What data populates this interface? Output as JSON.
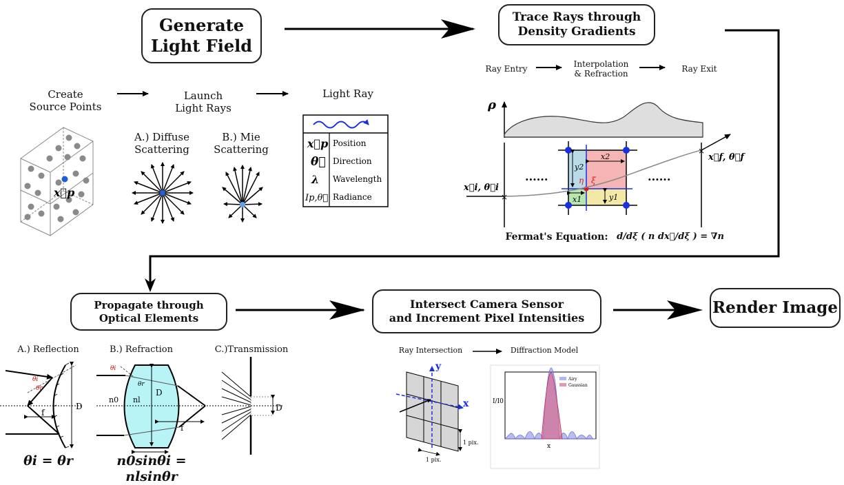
{
  "steps": {
    "generate": "Generate\nLight Field",
    "trace": "Trace Rays through\nDensity Gradients",
    "propagate": "Propagate through\nOptical Elements",
    "intersect": "Intersect Camera Sensor\nand Increment Pixel Intensities",
    "render": "Render Image"
  },
  "generate": {
    "create_source": "Create\nSource Points",
    "launch": "Launch\nLight Rays",
    "light_ray": "Light Ray",
    "diffuse": "A.) Diffuse\nScattering",
    "mie": "B.) Mie\nScattering",
    "xp_label": "x⃗p",
    "table": {
      "symbols": [
        "x⃗p",
        "θ⃗",
        "λ",
        "Ip,θ⃗"
      ],
      "labels": [
        "Position",
        "Direction",
        "Wavelength",
        "Radiance"
      ]
    }
  },
  "trace": {
    "ray_entry": "Ray Entry",
    "interp": "Interpolation\n& Refraction",
    "ray_exit": "Ray Exit",
    "rho": "ρ",
    "dots": "......",
    "entry_label": "x⃗i, θ⃗i",
    "exit_label": "x⃗f, θ⃗f",
    "x1": "x1",
    "x2": "x2",
    "y1": "y1",
    "y2": "y2",
    "eta": "η",
    "xi": "ξ",
    "fermat_label": "Fermat's Equation:",
    "fermat_eq": "d/dξ ( n dx⃗/dξ ) = ∇n"
  },
  "optics": {
    "reflection": "A.) Reflection",
    "refraction": "B.) Refraction",
    "transmission": "C.)Transmission",
    "theta_i": "θi",
    "theta_r": "θr",
    "n0": "n0",
    "nl": "nl",
    "D": "D",
    "f": "f",
    "t": "t",
    "eq_reflection": "θi = θr",
    "eq_refraction": "n0sinθi = nlsinθr"
  },
  "sensor": {
    "ray_intersection": "Ray Intersection",
    "diffraction": "Diffraction Model",
    "y": "y",
    "x": "x",
    "pix_h": "1 pix.",
    "pix_v": "1 pix.",
    "plot_ylabel": "I/I0",
    "plot_xlabel": "x",
    "legend": [
      "Airy",
      "Gaussian"
    ]
  },
  "colors": {
    "blue_dot": "#1f5ed8",
    "ray_blue": "#1a2fe0",
    "lens_fill": "#b8f3f6",
    "cell_blue": "#b9dbe8",
    "cell_red": "#f5b5b5",
    "cell_green": "#b8e6b0",
    "cell_yellow": "#f3e9a6",
    "airy": "#7f84e6",
    "gaussian": "#d46c8e"
  }
}
